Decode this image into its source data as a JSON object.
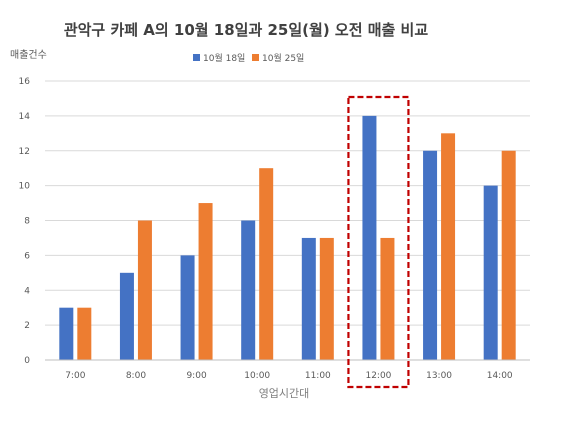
{
  "chart_data": {
    "type": "bar",
    "title": "관악구 카페 A의 10월 18일과 25일(월) 오전 매출 비교",
    "xlabel": "영업시간대",
    "ylabel": "매출건수",
    "categories": [
      "7:00",
      "8:00",
      "9:00",
      "10:00",
      "11:00",
      "12:00",
      "13:00",
      "14:00"
    ],
    "series": [
      {
        "name": "10월 18일",
        "color": "#4472c4",
        "values": [
          3,
          5,
          6,
          8,
          7,
          14,
          12,
          10
        ]
      },
      {
        "name": "10월 25일",
        "color": "#ed7d31",
        "values": [
          3,
          8,
          9,
          11,
          7,
          7,
          13,
          12
        ]
      }
    ],
    "ylim": [
      0,
      16
    ],
    "yticks": [
      0,
      2,
      4,
      6,
      8,
      10,
      12,
      14,
      16
    ],
    "grid": true,
    "legend": "top-center",
    "highlight": {
      "category": "12:00",
      "style": "dashed",
      "color": "#c00000"
    }
  }
}
